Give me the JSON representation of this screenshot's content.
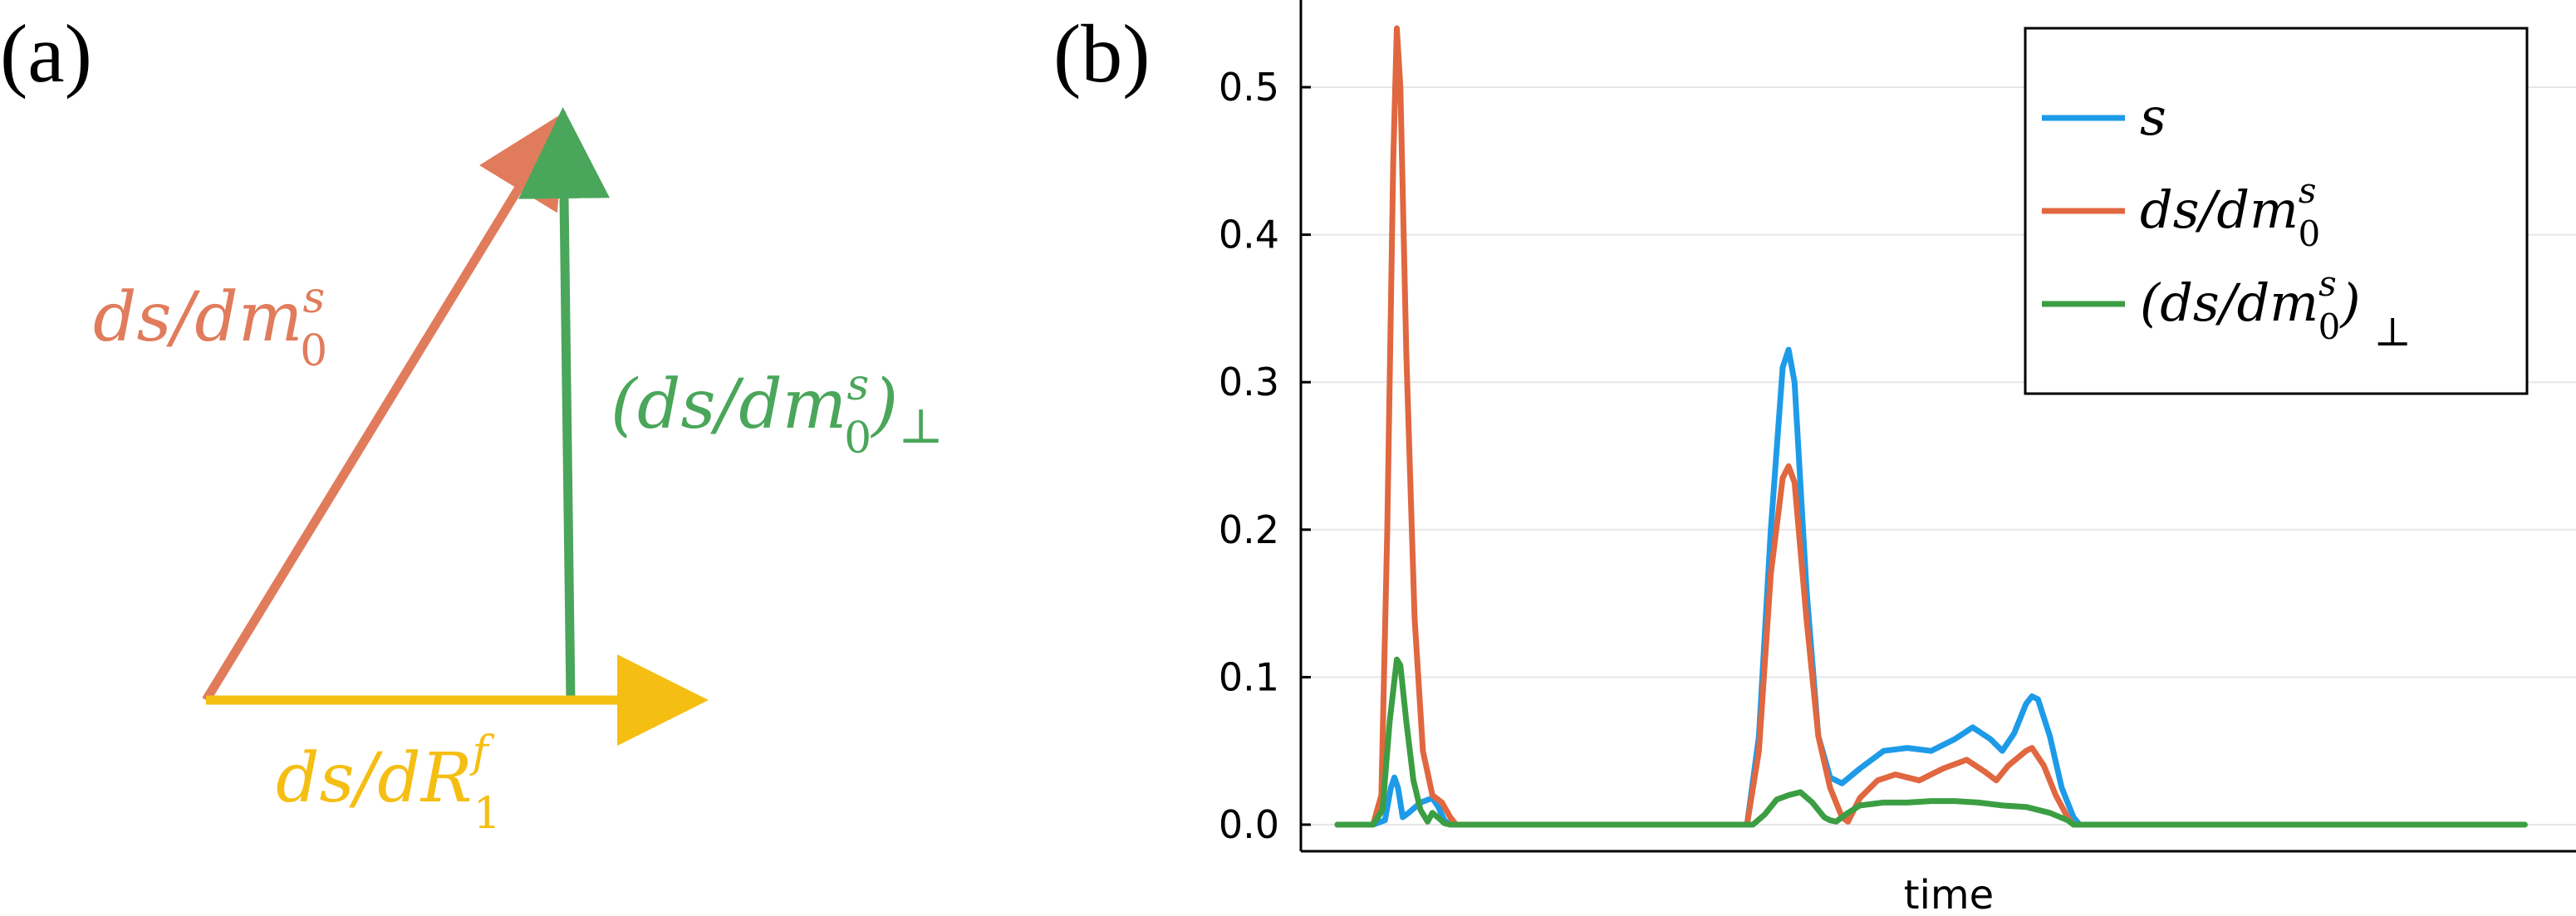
{
  "panel_a": {
    "label": "(a)",
    "colors": {
      "orange": "#E07C5C",
      "green": "#4AA65A",
      "yellow": "#F5BE12"
    },
    "vector_orange": {
      "base": "ds/dm",
      "sup": "s",
      "sub": "0"
    },
    "vector_green": {
      "open": "(ds/dm",
      "sup": "s",
      "sub": "0",
      "close": ")",
      "perp": "⊥"
    },
    "vector_yellow": {
      "base": "ds/dR",
      "sup": "f",
      "sub": "1"
    }
  },
  "panel_b": {
    "label": "(b)"
  },
  "chart_data": {
    "type": "line",
    "title": "",
    "xlabel": "time",
    "ylabel": "",
    "ylim": [
      0,
      0.55
    ],
    "xlim": [
      0,
      1.018
    ],
    "x_ticks_shown": false,
    "y_ticks": [
      0.0,
      0.1,
      0.2,
      0.3,
      0.4,
      0.5
    ],
    "y_tick_labels": [
      "0.0",
      "0.1",
      "0.2",
      "0.3",
      "0.4",
      "0.5"
    ],
    "grid": true,
    "legend_position": "top-right",
    "legend": [
      {
        "key": "s",
        "color": "#1E9BE8",
        "base": "s",
        "sup": "",
        "sub": "",
        "perp": ""
      },
      {
        "key": "ds_dm0s",
        "color": "#E0673F",
        "base": "ds/dm",
        "sup": "s",
        "sub": "0",
        "perp": ""
      },
      {
        "key": "ds_dm0s_perp",
        "color": "#3C9E43",
        "base": "(ds/dm",
        "sup": "s",
        "sub": "0",
        "perp": "⊥"
      }
    ],
    "series": [
      {
        "key": "s",
        "color": "#1E9BE8",
        "points": [
          [
            0,
            0
          ],
          [
            0.03,
            0
          ],
          [
            0.04,
            0.003
          ],
          [
            0.045,
            0.025
          ],
          [
            0.048,
            0.032
          ],
          [
            0.051,
            0.025
          ],
          [
            0.055,
            0.005
          ],
          [
            0.06,
            0.008
          ],
          [
            0.07,
            0.015
          ],
          [
            0.08,
            0.018
          ],
          [
            0.085,
            0.012
          ],
          [
            0.09,
            0.003
          ],
          [
            0.095,
            0
          ],
          [
            0.25,
            0
          ],
          [
            0.345,
            0
          ],
          [
            0.355,
            0.06
          ],
          [
            0.365,
            0.2
          ],
          [
            0.375,
            0.31
          ],
          [
            0.38,
            0.322
          ],
          [
            0.385,
            0.3
          ],
          [
            0.395,
            0.16
          ],
          [
            0.405,
            0.06
          ],
          [
            0.415,
            0.032
          ],
          [
            0.425,
            0.028
          ],
          [
            0.44,
            0.038
          ],
          [
            0.46,
            0.05
          ],
          [
            0.48,
            0.052
          ],
          [
            0.5,
            0.05
          ],
          [
            0.52,
            0.058
          ],
          [
            0.535,
            0.066
          ],
          [
            0.55,
            0.058
          ],
          [
            0.56,
            0.05
          ],
          [
            0.57,
            0.062
          ],
          [
            0.58,
            0.082
          ],
          [
            0.585,
            0.087
          ],
          [
            0.59,
            0.085
          ],
          [
            0.6,
            0.06
          ],
          [
            0.61,
            0.025
          ],
          [
            0.62,
            0.005
          ],
          [
            0.625,
            0
          ],
          [
            1.0,
            0
          ]
        ]
      },
      {
        "key": "ds_dm0s",
        "color": "#E0673F",
        "points": [
          [
            0,
            0
          ],
          [
            0.03,
            0
          ],
          [
            0.037,
            0.02
          ],
          [
            0.042,
            0.2
          ],
          [
            0.047,
            0.45
          ],
          [
            0.05,
            0.54
          ],
          [
            0.053,
            0.5
          ],
          [
            0.058,
            0.32
          ],
          [
            0.065,
            0.14
          ],
          [
            0.072,
            0.05
          ],
          [
            0.08,
            0.02
          ],
          [
            0.088,
            0.015
          ],
          [
            0.095,
            0.005
          ],
          [
            0.1,
            0
          ],
          [
            0.25,
            0
          ],
          [
            0.345,
            0
          ],
          [
            0.355,
            0.05
          ],
          [
            0.365,
            0.17
          ],
          [
            0.375,
            0.235
          ],
          [
            0.38,
            0.243
          ],
          [
            0.385,
            0.232
          ],
          [
            0.395,
            0.14
          ],
          [
            0.405,
            0.06
          ],
          [
            0.415,
            0.025
          ],
          [
            0.425,
            0.005
          ],
          [
            0.43,
            0.002
          ],
          [
            0.44,
            0.018
          ],
          [
            0.455,
            0.03
          ],
          [
            0.47,
            0.034
          ],
          [
            0.49,
            0.03
          ],
          [
            0.51,
            0.038
          ],
          [
            0.53,
            0.044
          ],
          [
            0.545,
            0.036
          ],
          [
            0.555,
            0.03
          ],
          [
            0.565,
            0.04
          ],
          [
            0.58,
            0.05
          ],
          [
            0.585,
            0.052
          ],
          [
            0.595,
            0.04
          ],
          [
            0.605,
            0.02
          ],
          [
            0.615,
            0.005
          ],
          [
            0.62,
            0
          ],
          [
            1.0,
            0
          ]
        ]
      },
      {
        "key": "ds_dm0s_perp",
        "color": "#3C9E43",
        "points": [
          [
            0,
            0
          ],
          [
            0.03,
            0
          ],
          [
            0.038,
            0.01
          ],
          [
            0.044,
            0.07
          ],
          [
            0.05,
            0.112
          ],
          [
            0.053,
            0.108
          ],
          [
            0.058,
            0.07
          ],
          [
            0.064,
            0.03
          ],
          [
            0.07,
            0.01
          ],
          [
            0.076,
            0.002
          ],
          [
            0.08,
            0.008
          ],
          [
            0.086,
            0.004
          ],
          [
            0.09,
            0.001
          ],
          [
            0.095,
            0
          ],
          [
            0.25,
            0
          ],
          [
            0.35,
            0
          ],
          [
            0.36,
            0.007
          ],
          [
            0.37,
            0.017
          ],
          [
            0.38,
            0.02
          ],
          [
            0.39,
            0.022
          ],
          [
            0.4,
            0.015
          ],
          [
            0.41,
            0.005
          ],
          [
            0.415,
            0.003
          ],
          [
            0.42,
            0.002
          ],
          [
            0.43,
            0.008
          ],
          [
            0.44,
            0.013
          ],
          [
            0.46,
            0.015
          ],
          [
            0.48,
            0.015
          ],
          [
            0.5,
            0.016
          ],
          [
            0.52,
            0.016
          ],
          [
            0.54,
            0.015
          ],
          [
            0.56,
            0.013
          ],
          [
            0.58,
            0.012
          ],
          [
            0.6,
            0.008
          ],
          [
            0.615,
            0.003
          ],
          [
            0.62,
            0
          ],
          [
            1.0,
            0
          ]
        ]
      }
    ]
  }
}
